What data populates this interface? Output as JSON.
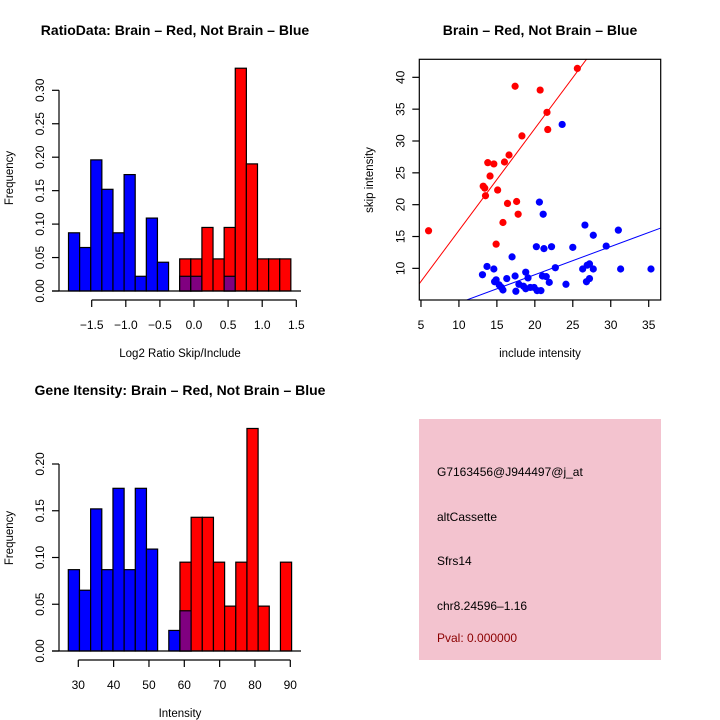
{
  "colors": {
    "brain": "#ff0000",
    "not_brain": "#0000ff",
    "overlap": "#800080",
    "panel_bg": "#f3c3cf",
    "pval": "#8b0000"
  },
  "chart_data": [
    {
      "type": "bar",
      "title": "RatioData: Brain – Red, Not Brain – Blue",
      "xlabel": "Log2 Ratio Skip/Include",
      "ylabel": "Frequency",
      "bin_start": -1.84,
      "bin_width": 0.163,
      "xlim": [
        -1.84,
        1.43
      ],
      "ylim": [
        0,
        0.33
      ],
      "xticks": [
        -1.5,
        -1.0,
        -0.5,
        0.0,
        0.5,
        1.0,
        1.5
      ],
      "xtick_labels": [
        "−1.5",
        "−1.0",
        "−0.5",
        "0.0",
        "0.5",
        "1.0",
        "1.5"
      ],
      "yticks": [
        0,
        0.05,
        0.1,
        0.15,
        0.2,
        0.25,
        0.3
      ],
      "ytick_labels": [
        "0.00",
        "0.05",
        "0.10",
        "0.15",
        "0.20",
        "0.25",
        "0.30"
      ],
      "series": [
        {
          "name": "Not Brain",
          "color": "blue",
          "values": [
            0.087,
            0.065,
            0.196,
            0.152,
            0.087,
            0.174,
            0.022,
            0.109,
            0.043,
            0,
            0.022,
            0.022,
            0,
            0,
            0.022,
            0,
            0,
            0,
            0,
            0
          ]
        },
        {
          "name": "Brain",
          "color": "red",
          "values": [
            0,
            0,
            0,
            0,
            0,
            0,
            0,
            0,
            0,
            0,
            0.048,
            0.048,
            0.095,
            0.048,
            0.095,
            0.333,
            0.19,
            0.048,
            0.048,
            0.048
          ]
        }
      ]
    },
    {
      "type": "scatter",
      "title": "Brain – Red, Not Brain – Blue",
      "xlabel": "include intensity",
      "ylabel": "skip intensity",
      "xlim": [
        4.78,
        36.58
      ],
      "ylim": [
        5.03,
        42.83
      ],
      "xticks": [
        5,
        10,
        15,
        20,
        25,
        30,
        35
      ],
      "xtick_labels": [
        "5",
        "10",
        "15",
        "20",
        "25",
        "30",
        "35"
      ],
      "yticks": [
        10,
        15,
        20,
        25,
        30,
        35,
        40
      ],
      "ytick_labels": [
        "10",
        "15",
        "20",
        "25",
        "30",
        "35",
        "40"
      ],
      "series": [
        {
          "name": "Brain",
          "color": "red",
          "fit": {
            "slope": 1.6,
            "intercept": -0.05
          },
          "points": [
            [
              6.0,
              15.9
            ],
            [
              17.4,
              38.6
            ],
            [
              20.7,
              38.0
            ],
            [
              25.6,
              41.4
            ],
            [
              21.6,
              34.5
            ],
            [
              21.7,
              31.8
            ],
            [
              18.3,
              30.8
            ],
            [
              16.6,
              27.8
            ],
            [
              16.0,
              26.7
            ],
            [
              13.8,
              26.6
            ],
            [
              14.6,
              26.4
            ],
            [
              14.1,
              24.5
            ],
            [
              13.2,
              22.9
            ],
            [
              13.4,
              22.6
            ],
            [
              13.5,
              21.4
            ],
            [
              15.1,
              22.3
            ],
            [
              16.4,
              20.2
            ],
            [
              17.6,
              20.5
            ],
            [
              17.8,
              18.5
            ],
            [
              15.8,
              17.2
            ],
            [
              14.9,
              13.8
            ]
          ]
        },
        {
          "name": "Not Brain",
          "color": "blue",
          "fit": {
            "slope": 0.442,
            "intercept": 0.16
          },
          "points": [
            [
              23.6,
              32.6
            ],
            [
              20.6,
              20.4
            ],
            [
              21.1,
              18.5
            ],
            [
              26.6,
              16.8
            ],
            [
              31.0,
              16.0
            ],
            [
              27.7,
              15.2
            ],
            [
              29.4,
              13.5
            ],
            [
              20.2,
              13.4
            ],
            [
              22.2,
              13.4
            ],
            [
              21.2,
              13.1
            ],
            [
              25.0,
              13.3
            ],
            [
              17.0,
              11.8
            ],
            [
              13.7,
              10.3
            ],
            [
              14.6,
              9.9
            ],
            [
              13.1,
              9.0
            ],
            [
              22.7,
              10.1
            ],
            [
              26.3,
              9.9
            ],
            [
              26.9,
              10.5
            ],
            [
              27.2,
              10.7
            ],
            [
              27.7,
              9.9
            ],
            [
              31.3,
              9.9
            ],
            [
              35.3,
              9.9
            ],
            [
              18.8,
              9.4
            ],
            [
              19.1,
              8.5
            ],
            [
              17.4,
              8.8
            ],
            [
              16.3,
              8.4
            ],
            [
              21.0,
              8.8
            ],
            [
              21.5,
              8.7
            ],
            [
              14.7,
              7.9
            ],
            [
              14.9,
              8.2
            ],
            [
              15.3,
              7.4
            ],
            [
              15.6,
              7.0
            ],
            [
              15.8,
              6.6
            ],
            [
              17.5,
              6.4
            ],
            [
              17.9,
              7.5
            ],
            [
              18.5,
              7.2
            ],
            [
              18.8,
              6.8
            ],
            [
              19.4,
              7.0
            ],
            [
              19.9,
              7.0
            ],
            [
              20.3,
              6.5
            ],
            [
              20.8,
              6.5
            ],
            [
              21.9,
              7.8
            ],
            [
              24.1,
              7.5
            ],
            [
              26.8,
              7.9
            ],
            [
              27.2,
              8.4
            ]
          ]
        }
      ]
    },
    {
      "type": "bar",
      "title": "Gene Itensity: Brain – Red, Not Brain – Blue",
      "xlabel": "Intensity",
      "ylabel": "Frequency",
      "bin_start": 27.17,
      "bin_width": 3.16,
      "xlim": [
        27.17,
        90.4
      ],
      "ylim": [
        0,
        0.24
      ],
      "xticks": [
        30,
        40,
        50,
        60,
        70,
        80,
        90
      ],
      "xtick_labels": [
        "30",
        "40",
        "50",
        "60",
        "70",
        "80",
        "90"
      ],
      "yticks": [
        0,
        0.05,
        0.1,
        0.15,
        0.2
      ],
      "ytick_labels": [
        "0.00",
        "0.05",
        "0.10",
        "0.15",
        "0.20"
      ],
      "series": [
        {
          "name": "Not Brain",
          "color": "blue",
          "values": [
            0.087,
            0.065,
            0.152,
            0.087,
            0.174,
            0.087,
            0.174,
            0.109,
            0,
            0.022,
            0.043,
            0,
            0,
            0,
            0,
            0,
            0,
            0,
            0,
            0
          ]
        },
        {
          "name": "Brain",
          "color": "red",
          "values": [
            0,
            0,
            0,
            0,
            0,
            0,
            0,
            0,
            0,
            0,
            0.095,
            0.143,
            0.143,
            0.095,
            0.048,
            0.095,
            0.238,
            0.048,
            0,
            0.095
          ]
        }
      ]
    }
  ],
  "info_panel": {
    "probe_id": "G7163456@J944497@j_at",
    "event_type": "altCassette",
    "gene": "Sfrs14",
    "location": "chr8.24596–1.16",
    "pval": "Pval: 0.000000"
  }
}
